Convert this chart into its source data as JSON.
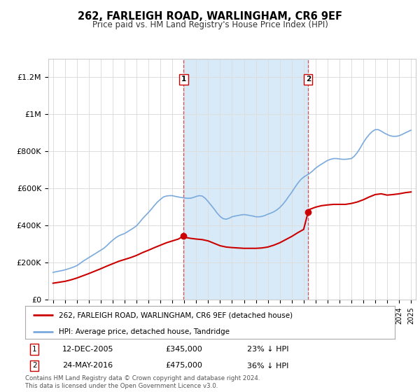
{
  "title": "262, FARLEIGH ROAD, WARLINGHAM, CR6 9EF",
  "subtitle": "Price paid vs. HM Land Registry's House Price Index (HPI)",
  "footer": "Contains HM Land Registry data © Crown copyright and database right 2024.\nThis data is licensed under the Open Government Licence v3.0.",
  "legend_property": "262, FARLEIGH ROAD, WARLINGHAM, CR6 9EF (detached house)",
  "legend_hpi": "HPI: Average price, detached house, Tandridge",
  "sale1_label": "1",
  "sale1_date": "12-DEC-2005",
  "sale1_price": "£345,000",
  "sale1_note": "23% ↓ HPI",
  "sale1_year": 2005.95,
  "sale1_value": 345000,
  "sale2_label": "2",
  "sale2_date": "24-MAY-2016",
  "sale2_price": "£475,000",
  "sale2_note": "36% ↓ HPI",
  "sale2_year": 2016.38,
  "sale2_value": 475000,
  "hpi_color": "#7aaadd",
  "property_color": "#cc0000",
  "shade_color": "#d8eaf8",
  "marker_box_color": "#cc0000",
  "ylim": [
    0,
    1300000
  ],
  "yticks": [
    0,
    200000,
    400000,
    600000,
    800000,
    1000000,
    1200000
  ],
  "ytick_labels": [
    "£0",
    "£200K",
    "£400K",
    "£600K",
    "£800K",
    "£1M",
    "£1.2M"
  ],
  "hpi_years": [
    1995.0,
    1995.25,
    1995.5,
    1995.75,
    1996.0,
    1996.25,
    1996.5,
    1996.75,
    1997.0,
    1997.25,
    1997.5,
    1997.75,
    1998.0,
    1998.25,
    1998.5,
    1998.75,
    1999.0,
    1999.25,
    1999.5,
    1999.75,
    2000.0,
    2000.25,
    2000.5,
    2000.75,
    2001.0,
    2001.25,
    2001.5,
    2001.75,
    2002.0,
    2002.25,
    2002.5,
    2002.75,
    2003.0,
    2003.25,
    2003.5,
    2003.75,
    2004.0,
    2004.25,
    2004.5,
    2004.75,
    2005.0,
    2005.25,
    2005.5,
    2005.75,
    2006.0,
    2006.25,
    2006.5,
    2006.75,
    2007.0,
    2007.25,
    2007.5,
    2007.75,
    2008.0,
    2008.25,
    2008.5,
    2008.75,
    2009.0,
    2009.25,
    2009.5,
    2009.75,
    2010.0,
    2010.25,
    2010.5,
    2010.75,
    2011.0,
    2011.25,
    2011.5,
    2011.75,
    2012.0,
    2012.25,
    2012.5,
    2012.75,
    2013.0,
    2013.25,
    2013.5,
    2013.75,
    2014.0,
    2014.25,
    2014.5,
    2014.75,
    2015.0,
    2015.25,
    2015.5,
    2015.75,
    2016.0,
    2016.25,
    2016.5,
    2016.75,
    2017.0,
    2017.25,
    2017.5,
    2017.75,
    2018.0,
    2018.25,
    2018.5,
    2018.75,
    2019.0,
    2019.25,
    2019.5,
    2019.75,
    2020.0,
    2020.25,
    2020.5,
    2020.75,
    2021.0,
    2021.25,
    2021.5,
    2021.75,
    2022.0,
    2022.25,
    2022.5,
    2022.75,
    2023.0,
    2023.25,
    2023.5,
    2023.75,
    2024.0,
    2024.25,
    2024.5,
    2024.75,
    2025.0
  ],
  "hpi_values": [
    148000,
    152000,
    155000,
    158000,
    162000,
    167000,
    172000,
    178000,
    185000,
    196000,
    208000,
    218000,
    228000,
    238000,
    248000,
    258000,
    268000,
    278000,
    292000,
    308000,
    322000,
    335000,
    345000,
    352000,
    358000,
    368000,
    378000,
    388000,
    400000,
    418000,
    438000,
    455000,
    472000,
    490000,
    510000,
    528000,
    542000,
    555000,
    560000,
    562000,
    562000,
    558000,
    555000,
    552000,
    550000,
    548000,
    548000,
    552000,
    558000,
    562000,
    560000,
    548000,
    530000,
    510000,
    490000,
    468000,
    450000,
    438000,
    435000,
    440000,
    448000,
    452000,
    455000,
    458000,
    460000,
    458000,
    455000,
    452000,
    448000,
    448000,
    450000,
    455000,
    462000,
    468000,
    475000,
    485000,
    498000,
    515000,
    535000,
    558000,
    580000,
    605000,
    628000,
    648000,
    662000,
    672000,
    682000,
    695000,
    710000,
    722000,
    732000,
    742000,
    752000,
    758000,
    762000,
    762000,
    760000,
    758000,
    758000,
    760000,
    762000,
    775000,
    795000,
    820000,
    848000,
    872000,
    892000,
    908000,
    918000,
    918000,
    910000,
    900000,
    892000,
    885000,
    882000,
    882000,
    885000,
    892000,
    900000,
    908000,
    915000
  ],
  "prop_years": [
    1995.0,
    1995.5,
    1996.0,
    1996.5,
    1997.0,
    1997.5,
    1998.0,
    1998.5,
    1999.0,
    1999.5,
    2000.0,
    2000.5,
    2001.0,
    2001.5,
    2002.0,
    2002.5,
    2003.0,
    2003.5,
    2004.0,
    2004.5,
    2005.0,
    2005.5,
    2005.95,
    2006.0,
    2006.5,
    2007.0,
    2007.5,
    2008.0,
    2008.5,
    2009.0,
    2009.5,
    2010.0,
    2010.5,
    2011.0,
    2011.5,
    2012.0,
    2012.5,
    2013.0,
    2013.5,
    2014.0,
    2014.5,
    2015.0,
    2015.5,
    2016.0,
    2016.38,
    2016.5,
    2017.0,
    2017.5,
    2018.0,
    2018.5,
    2019.0,
    2019.5,
    2020.0,
    2020.5,
    2021.0,
    2021.5,
    2022.0,
    2022.5,
    2023.0,
    2023.5,
    2024.0,
    2024.5,
    2025.0
  ],
  "prop_values": [
    90000,
    95000,
    100000,
    108000,
    118000,
    130000,
    142000,
    155000,
    168000,
    182000,
    195000,
    208000,
    218000,
    228000,
    240000,
    255000,
    268000,
    282000,
    295000,
    308000,
    318000,
    328000,
    345000,
    338000,
    332000,
    328000,
    325000,
    318000,
    305000,
    292000,
    285000,
    282000,
    280000,
    278000,
    278000,
    278000,
    280000,
    285000,
    295000,
    308000,
    325000,
    342000,
    362000,
    380000,
    475000,
    488000,
    500000,
    508000,
    512000,
    515000,
    515000,
    515000,
    520000,
    528000,
    540000,
    555000,
    568000,
    572000,
    565000,
    568000,
    572000,
    578000,
    582000
  ]
}
